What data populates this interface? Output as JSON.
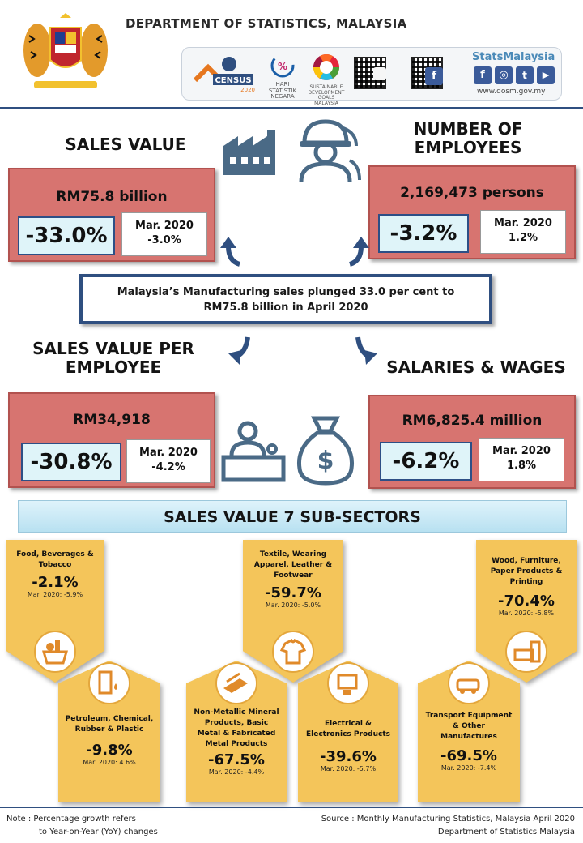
{
  "header": {
    "title": "DEPARTMENT OF STATISTICS, MALAYSIA",
    "stats_brand": "StatsMalaysia",
    "website": "www.dosm.gov.my",
    "census_label": "CENSUS",
    "census_year": "2020",
    "hari_label": "HARI STATISTIK NEGARA",
    "sdg_label": "SUSTAINABLE DEVELOPMENT GOALS MALAYSIA"
  },
  "colors": {
    "stat_box": "#d77470",
    "accent_blue": "#2f4f80",
    "tag_gold": "#f4c55a",
    "pct_box": "#dff4f9"
  },
  "sales_value": {
    "heading": "SALES VALUE",
    "value": "RM75.8 billion",
    "yoy": "-33.0%",
    "mar_label": "Mar. 2020",
    "mar_value": "-3.0%"
  },
  "employees": {
    "heading_line1": "NUMBER OF",
    "heading_line2": "EMPLOYEES",
    "value": "2,169,473 persons",
    "yoy": "-3.2%",
    "mar_label": "Mar. 2020",
    "mar_value": "1.2%"
  },
  "callout": {
    "line1": "Malaysia’s Manufacturing sales plunged 33.0 per cent to",
    "line2": "RM75.8 billion in April 2020"
  },
  "sales_per_employee": {
    "heading_line1": "SALES VALUE PER",
    "heading_line2": "EMPLOYEE",
    "value": "RM34,918",
    "yoy": "-30.8%",
    "mar_label": "Mar. 2020",
    "mar_value": "-4.2%"
  },
  "salaries": {
    "heading": "SALARIES & WAGES",
    "value": "RM6,825.4 million",
    "yoy": "-6.2%",
    "mar_label": "Mar. 2020",
    "mar_value": "1.8%"
  },
  "subsectors": {
    "heading": "SALES VALUE 7 SUB-SECTORS",
    "items": [
      {
        "name": "Food, Beverages & Tobacco",
        "value": "-2.1%",
        "mar": "Mar. 2020: -5.9%",
        "icon": "food-basket-icon"
      },
      {
        "name": "Textile, Wearing Apparel, Leather & Footwear",
        "value": "-59.7%",
        "mar": "Mar. 2020: -5.0%",
        "icon": "shirt-icon"
      },
      {
        "name": "Wood, Furniture, Paper Products & Printing",
        "value": "-70.4%",
        "mar": "Mar. 2020: -5.8%",
        "icon": "furniture-icon"
      },
      {
        "name": "Petroleum, Chemical, Rubber & Plastic",
        "value": "-9.8%",
        "mar": "Mar. 2020: 4.6%",
        "icon": "oil-barrel-icon"
      },
      {
        "name": "Non-Metallic Mineral Products, Basic Metal & Fabricated Metal Products",
        "value": "-67.5%",
        "mar": "Mar. 2020: -4.4%",
        "icon": "metal-bars-icon"
      },
      {
        "name": "Electrical & Electronics Products",
        "value": "-39.6%",
        "mar": "Mar. 2020: -5.7%",
        "icon": "electronics-icon"
      },
      {
        "name": "Transport Equipment & Other Manufactures",
        "value": "-69.5%",
        "mar": "Mar. 2020: -7.4%",
        "icon": "cars-icon"
      }
    ]
  },
  "footer": {
    "note_line1": "Note :  Percentage growth refers",
    "note_line2": "to Year-on-Year (YoY) changes",
    "source_line1": "Source : Monthly Manufacturing Statistics, Malaysia April 2020",
    "source_line2": "Department of Statistics Malaysia"
  }
}
